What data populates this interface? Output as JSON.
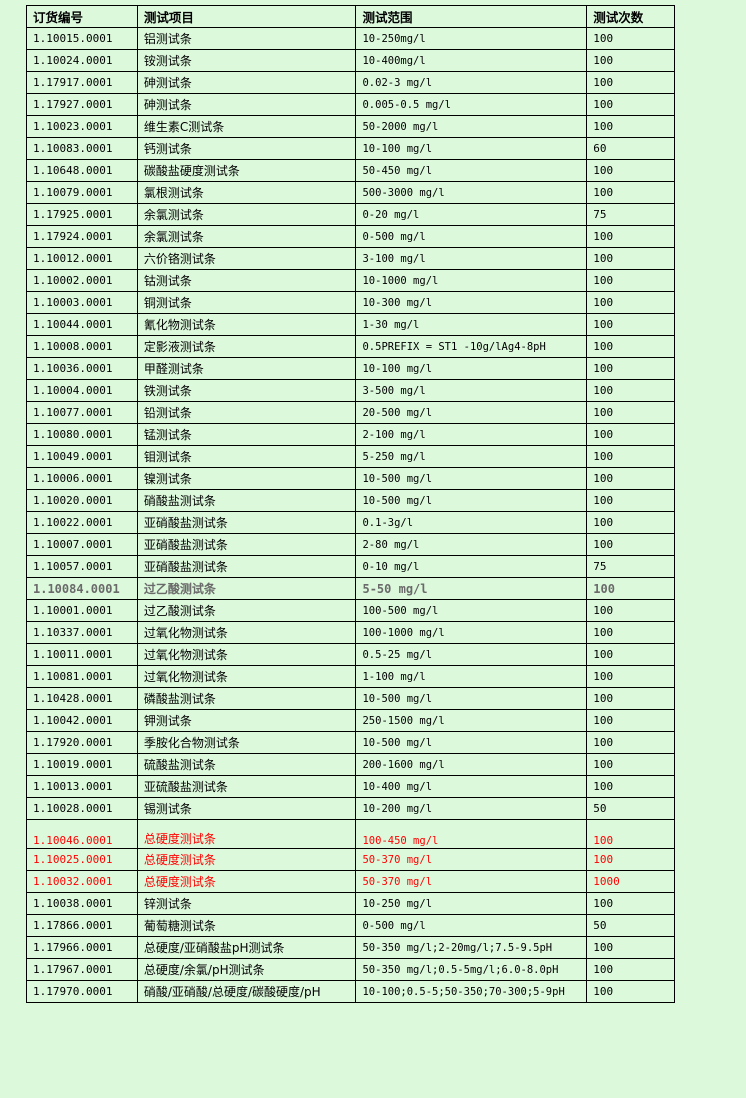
{
  "headers": [
    "订货编号",
    "测试项目",
    "测试范围",
    "测试次数"
  ],
  "colors": {
    "background": "#dcf9dc",
    "highlight_red": "#ff0000",
    "emphasis_gray": "#6a6a6a"
  },
  "rows": [
    {
      "code": "1.10015.0001",
      "item": "铝测试条",
      "range": "10-250mg/l",
      "count": "100"
    },
    {
      "code": "1.10024.0001",
      "item": "铵测试条",
      "range": "10-400mg/l",
      "count": "100"
    },
    {
      "code": "1.17917.0001",
      "item": "砷测试条",
      "range": "0.02-3 mg/l",
      "count": "100"
    },
    {
      "code": "1.17927.0001",
      "item": "砷测试条",
      "range": "0.005-0.5 mg/l",
      "count": "100"
    },
    {
      "code": "1.10023.0001",
      "item": "维生素C测试条",
      "range": "50-2000 mg/l",
      "count": "100"
    },
    {
      "code": "1.10083.0001",
      "item": "钙测试条",
      "range": "10-100 mg/l",
      "count": "60"
    },
    {
      "code": "1.10648.0001",
      "item": "碳酸盐硬度测试条",
      "range": "50-450 mg/l",
      "count": "100"
    },
    {
      "code": "1.10079.0001",
      "item": "氯根测试条",
      "range": "500-3000 mg/l",
      "count": "100"
    },
    {
      "code": "1.17925.0001",
      "item": "余氯测试条",
      "range": "0-20 mg/l",
      "count": "75"
    },
    {
      "code": "1.17924.0001",
      "item": "余氯测试条",
      "range": "0-500 mg/l",
      "count": "100"
    },
    {
      "code": "1.10012.0001",
      "item": "六价铬测试条",
      "range": "3-100 mg/l",
      "count": "100"
    },
    {
      "code": "1.10002.0001",
      "item": "钴测试条",
      "range": "10-1000 mg/l",
      "count": "100"
    },
    {
      "code": "1.10003.0001",
      "item": "铜测试条",
      "range": "10-300 mg/l",
      "count": "100"
    },
    {
      "code": "1.10044.0001",
      "item": "氰化物测试条",
      "range": "1-30 mg/l",
      "count": "100"
    },
    {
      "code": "1.10008.0001",
      "item": "定影液测试条",
      "range": "0.5PREFIX = ST1 -10g/lAg4-8pH",
      "count": "100"
    },
    {
      "code": "1.10036.0001",
      "item": "甲醛测试条",
      "range": "10-100 mg/l",
      "count": "100"
    },
    {
      "code": "1.10004.0001",
      "item": "铁测试条",
      "range": "3-500 mg/l",
      "count": "100"
    },
    {
      "code": "1.10077.0001",
      "item": "铅测试条",
      "range": "20-500 mg/l",
      "count": "100"
    },
    {
      "code": "1.10080.0001",
      "item": "锰测试条",
      "range": "2-100 mg/l",
      "count": "100"
    },
    {
      "code": "1.10049.0001",
      "item": "钼测试条",
      "range": "5-250 mg/l",
      "count": "100"
    },
    {
      "code": "1.10006.0001",
      "item": "镍测试条",
      "range": "10-500 mg/l",
      "count": "100"
    },
    {
      "code": "1.10020.0001",
      "item": "硝酸盐测试条",
      "range": "10-500 mg/l",
      "count": "100"
    },
    {
      "code": "1.10022.0001",
      "item": "亚硝酸盐测试条",
      "range": "0.1-3g/l",
      "count": "100"
    },
    {
      "code": "1.10007.0001",
      "item": "亚硝酸盐测试条",
      "range": "2-80 mg/l",
      "count": "100"
    },
    {
      "code": "1.10057.0001",
      "item": "亚硝酸盐测试条",
      "range": "0-10 mg/l",
      "count": "75"
    },
    {
      "code": "1.10084.0001",
      "item": "过乙酸测试条",
      "range": "5-50 mg/l",
      "count": "100",
      "style": "emph"
    },
    {
      "code": "1.10001.0001",
      "item": "过乙酸测试条",
      "range": "100-500 mg/l",
      "count": "100"
    },
    {
      "code": "1.10337.0001",
      "item": "过氧化物测试条",
      "range": "100-1000 mg/l",
      "count": "100"
    },
    {
      "code": "1.10011.0001",
      "item": "过氧化物测试条",
      "range": "0.5-25 mg/l",
      "count": "100"
    },
    {
      "code": "1.10081.0001",
      "item": "过氧化物测试条",
      "range": "1-100 mg/l",
      "count": "100"
    },
    {
      "code": "1.10428.0001",
      "item": "磷酸盐测试条",
      "range": "10-500 mg/l",
      "count": "100"
    },
    {
      "code": "1.10042.0001",
      "item": "钾测试条",
      "range": "250-1500 mg/l",
      "count": "100"
    },
    {
      "code": "1.17920.0001",
      "item": "季胺化合物测试条",
      "range": "10-500 mg/l",
      "count": "100"
    },
    {
      "code": "1.10019.0001",
      "item": "硫酸盐测试条",
      "range": "200-1600 mg/l",
      "count": "100"
    },
    {
      "code": "1.10013.0001",
      "item": "亚硫酸盐测试条",
      "range": "10-400 mg/l",
      "count": "100"
    },
    {
      "code": "1.10028.0001",
      "item": "锡测试条",
      "range": "10-200 mg/l",
      "count": "50"
    },
    {
      "code": "1.10046.0001",
      "item": "总硬度测试条",
      "range": "100-450 mg/l",
      "count": "100",
      "style": "red tall"
    },
    {
      "code": "1.10025.0001",
      "item": "总硬度测试条",
      "range": "50-370 mg/l",
      "count": "100",
      "style": "red"
    },
    {
      "code": "1.10032.0001",
      "item": "总硬度测试条",
      "range": "50-370 mg/l",
      "count": "1000",
      "style": "red"
    },
    {
      "code": "1.10038.0001",
      "item": "锌测试条",
      "range": "10-250 mg/l",
      "count": "100"
    },
    {
      "code": "1.17866.0001",
      "item": "葡萄糖测试条",
      "range": "0-500 mg/l",
      "count": "50"
    },
    {
      "code": "1.17966.0001",
      "item": "总硬度/亚硝酸盐pH测试条",
      "range": "50-350 mg/l;2-20mg/l;7.5-9.5pH",
      "count": "100"
    },
    {
      "code": "1.17967.0001",
      "item": "总硬度/余氯/pH测试条",
      "range": "50-350 mg/l;0.5-5mg/l;6.0-8.0pH",
      "count": "100"
    },
    {
      "code": "1.17970.0001",
      "item": "硝酸/亚硝酸/总硬度/碳酸硬度/pH",
      "range": "10-100;0.5-5;50-350;70-300;5-9pH",
      "count": "100"
    }
  ]
}
